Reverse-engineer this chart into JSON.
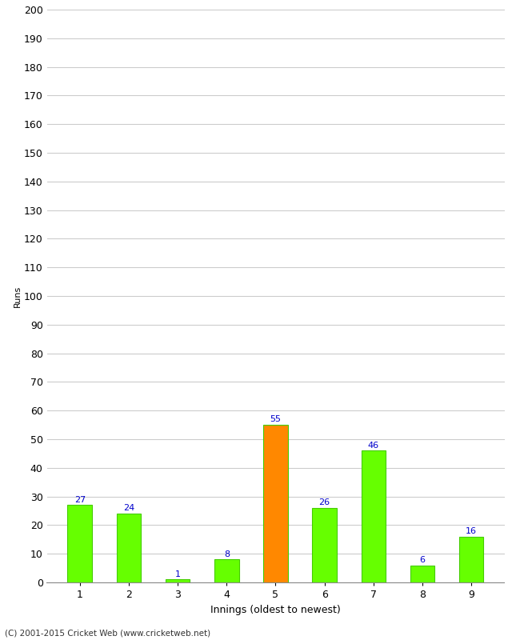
{
  "categories": [
    "1",
    "2",
    "3",
    "4",
    "5",
    "6",
    "7",
    "8",
    "9"
  ],
  "values": [
    27,
    24,
    1,
    8,
    55,
    26,
    46,
    6,
    16
  ],
  "bar_colors": [
    "#66ff00",
    "#66ff00",
    "#66ff00",
    "#66ff00",
    "#ff8800",
    "#66ff00",
    "#66ff00",
    "#66ff00",
    "#66ff00"
  ],
  "label_color": "#0000cc",
  "ylabel": "Runs",
  "xlabel": "Innings (oldest to newest)",
  "ylim": [
    0,
    200
  ],
  "yticks": [
    0,
    10,
    20,
    30,
    40,
    50,
    60,
    70,
    80,
    90,
    100,
    110,
    120,
    130,
    140,
    150,
    160,
    170,
    180,
    190,
    200
  ],
  "background_color": "#ffffff",
  "footer": "(C) 2001-2015 Cricket Web (www.cricketweb.net)",
  "grid_color": "#cccccc",
  "bar_edge_color": "#44cc00",
  "label_fontsize": 8,
  "axis_tick_fontsize": 9,
  "xlabel_fontsize": 9,
  "ylabel_fontsize": 8,
  "footer_fontsize": 7.5
}
